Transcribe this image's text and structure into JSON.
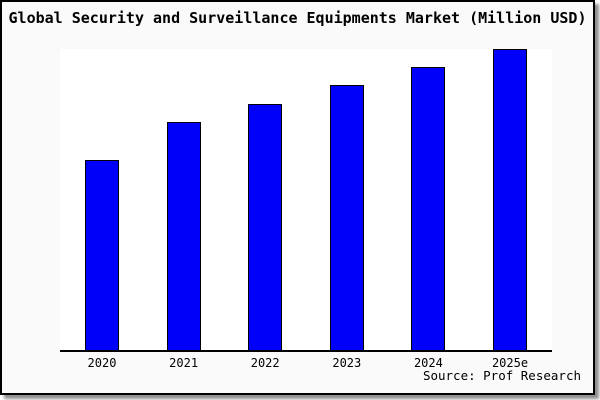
{
  "title": "Global Security and Surveillance Equipments Market (Million USD)",
  "source": "Source: Prof Research",
  "colors": {
    "bar_fill": "#0000fa",
    "bar_border": "#000000",
    "panel_background": "#fafafa",
    "plot_background": "#ffffff",
    "frame_border": "#000000",
    "text": "#000000"
  },
  "chart_data": {
    "type": "bar",
    "title": "Global Security and Surveillance Equipments Market (Million USD)",
    "categories": [
      "2020",
      "2021",
      "2022",
      "2023",
      "2024",
      "2025e"
    ],
    "values": [
      190,
      228,
      246,
      265,
      283,
      301
    ],
    "value_scale": "relative bar heights in px; chart displays no y-axis tick values",
    "xlabel": "",
    "ylabel": "",
    "ylim": [
      0,
      301
    ],
    "grid": false,
    "legend": "none",
    "y_axis_visible": false,
    "x_axis_line": true,
    "source": "Source: Prof Research"
  }
}
